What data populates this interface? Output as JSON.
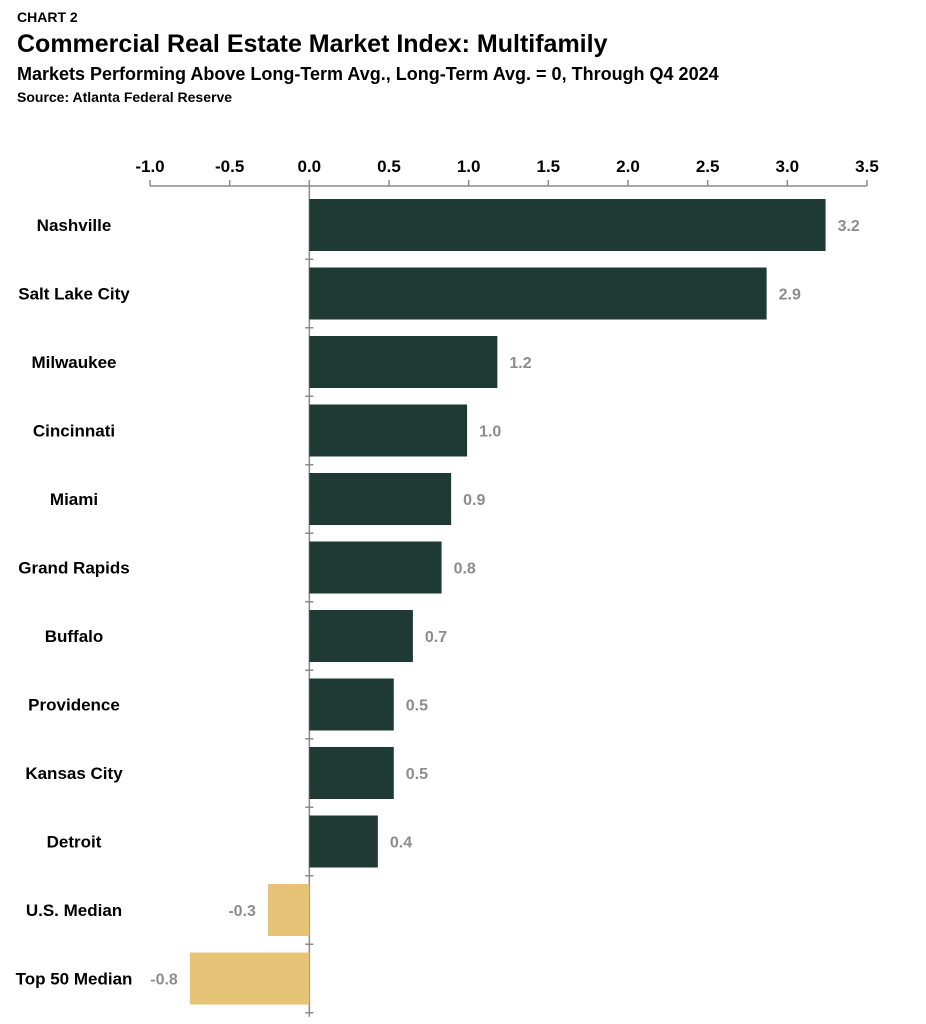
{
  "header": {
    "kicker": "CHART 2",
    "title": "Commercial Real Estate Market Index: Multifamily",
    "subtitle": "Markets Performing Above Long-Term Avg., Long-Term Avg. = 0, Through Q4 2024",
    "source": "Source: Atlanta Federal Reserve"
  },
  "colors": {
    "market_bar": "#1f3a32",
    "median_bar": "#e6c376",
    "value_label": "#8c8c8c",
    "axis": "#8a8a8a"
  },
  "chart_data": {
    "type": "bar",
    "orientation": "horizontal",
    "categories": [
      "Nashville",
      "Salt Lake City",
      "Milwaukee",
      "Cincinnati",
      "Miami",
      "Grand Rapids",
      "Buffalo",
      "Providence",
      "Kansas City",
      "Detroit",
      "U.S. Median",
      "Top 50 Median"
    ],
    "values": [
      3.24,
      2.87,
      1.18,
      0.99,
      0.89,
      0.83,
      0.65,
      0.53,
      0.53,
      0.43,
      -0.26,
      -0.75
    ],
    "value_labels": [
      "3.2",
      "2.9",
      "1.2",
      "1.0",
      "0.9",
      "0.8",
      "0.7",
      "0.5",
      "0.5",
      "0.4",
      "-0.3",
      "-0.8"
    ],
    "bar_group": [
      "market",
      "market",
      "market",
      "market",
      "market",
      "market",
      "market",
      "market",
      "market",
      "market",
      "median",
      "median"
    ],
    "xlim": [
      -1.0,
      3.5
    ],
    "x_ticks": [
      -1.0,
      -0.5,
      0.0,
      0.5,
      1.0,
      1.5,
      2.0,
      2.5,
      3.0,
      3.5
    ],
    "x_tick_labels": [
      "-1.0",
      "-0.5",
      "0.0",
      "0.5",
      "1.0",
      "1.5",
      "2.0",
      "2.5",
      "3.0",
      "3.5"
    ],
    "axis_position": "top",
    "grid": false,
    "legend": false
  }
}
